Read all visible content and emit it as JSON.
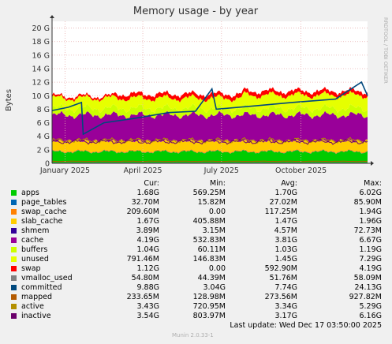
{
  "chart_data": {
    "type": "area",
    "title": "Memory usage - by year",
    "ylabel": "Bytes",
    "ylim": [
      0,
      21
    ],
    "yticks": [
      "0",
      "2 G",
      "4 G",
      "6 G",
      "8 G",
      "10 G",
      "12 G",
      "14 G",
      "16 G",
      "18 G",
      "20 G"
    ],
    "xticks": [
      "January 2025",
      "April 2025",
      "July 2025",
      "October 2025"
    ],
    "watermark": "RRDTOOL / TOBI OETIKER",
    "series_stack_gib_approx": {
      "apps": 1.7,
      "page_tables": 0.03,
      "swap_cache": 0.1,
      "slab_cache": 1.5,
      "shmem": 0.005,
      "cache": 3.8,
      "buffers": 1.0,
      "unused": 1.5,
      "swap": 0.6
    },
    "committed_line_gib_approx": [
      [
        "2024-12-17",
        7.8
      ],
      [
        "2025-01-05",
        8.3
      ],
      [
        "2025-01-20",
        9.0
      ],
      [
        "2025-01-22",
        4.3
      ],
      [
        "2025-02-15",
        6.0
      ],
      [
        "2025-03-20",
        6.6
      ],
      [
        "2025-05-01",
        7.5
      ],
      [
        "2025-06-01",
        7.7
      ],
      [
        "2025-06-20",
        11.0
      ],
      [
        "2025-06-25",
        8.0
      ],
      [
        "2025-08-10",
        8.5
      ],
      [
        "2025-09-20",
        9.0
      ],
      [
        "2025-11-10",
        9.5
      ],
      [
        "2025-12-10",
        12.0
      ],
      [
        "2025-12-17",
        10.0
      ]
    ]
  },
  "legend": {
    "headers": {
      "cur": "Cur:",
      "min": "Min:",
      "avg": "Avg:",
      "max": "Max:"
    },
    "rows": [
      {
        "name": "apps",
        "color": "#00cc00",
        "cur": "1.68G",
        "min": "569.25M",
        "avg": "1.70G",
        "max": "6.02G"
      },
      {
        "name": "page_tables",
        "color": "#0066b3",
        "cur": "32.70M",
        "min": "15.82M",
        "avg": "27.02M",
        "max": "85.90M"
      },
      {
        "name": "swap_cache",
        "color": "#ff8000",
        "cur": "209.60M",
        "min": "0.00",
        "avg": "117.25M",
        "max": "1.94G"
      },
      {
        "name": "slab_cache",
        "color": "#ffcc00",
        "cur": "1.67G",
        "min": "405.88M",
        "avg": "1.47G",
        "max": "1.96G"
      },
      {
        "name": "shmem",
        "color": "#330099",
        "cur": "3.89M",
        "min": "3.15M",
        "avg": "4.57M",
        "max": "72.73M"
      },
      {
        "name": "cache",
        "color": "#990099",
        "cur": "4.19G",
        "min": "532.83M",
        "avg": "3.81G",
        "max": "6.67G"
      },
      {
        "name": "buffers",
        "color": "#ccff00",
        "cur": "1.04G",
        "min": "60.11M",
        "avg": "1.03G",
        "max": "1.19G"
      },
      {
        "name": "unused",
        "color": "#e6ff00",
        "cur": "791.46M",
        "min": "146.83M",
        "avg": "1.45G",
        "max": "7.29G"
      },
      {
        "name": "swap",
        "color": "#ff0000",
        "cur": "1.12G",
        "min": "0.00",
        "avg": "592.90M",
        "max": "4.19G"
      },
      {
        "name": "vmalloc_used",
        "color": "#808080",
        "cur": "54.80M",
        "min": "44.39M",
        "avg": "51.76M",
        "max": "58.09M"
      },
      {
        "name": "committed",
        "color": "#00487d",
        "cur": "9.88G",
        "min": "3.04G",
        "avg": "7.74G",
        "max": "24.13G"
      },
      {
        "name": "mapped",
        "color": "#b35a00",
        "cur": "233.65M",
        "min": "128.98M",
        "avg": "273.56M",
        "max": "927.82M"
      },
      {
        "name": "active",
        "color": "#b38f00",
        "cur": "3.43G",
        "min": "720.95M",
        "avg": "3.34G",
        "max": "5.29G"
      },
      {
        "name": "inactive",
        "color": "#6b006b",
        "cur": "3.54G",
        "min": "803.97M",
        "avg": "3.17G",
        "max": "6.16G"
      }
    ]
  },
  "last_update": "Last update:  Wed Dec 17 03:50:00 2025",
  "footer": "Munin 2.0.33-1"
}
